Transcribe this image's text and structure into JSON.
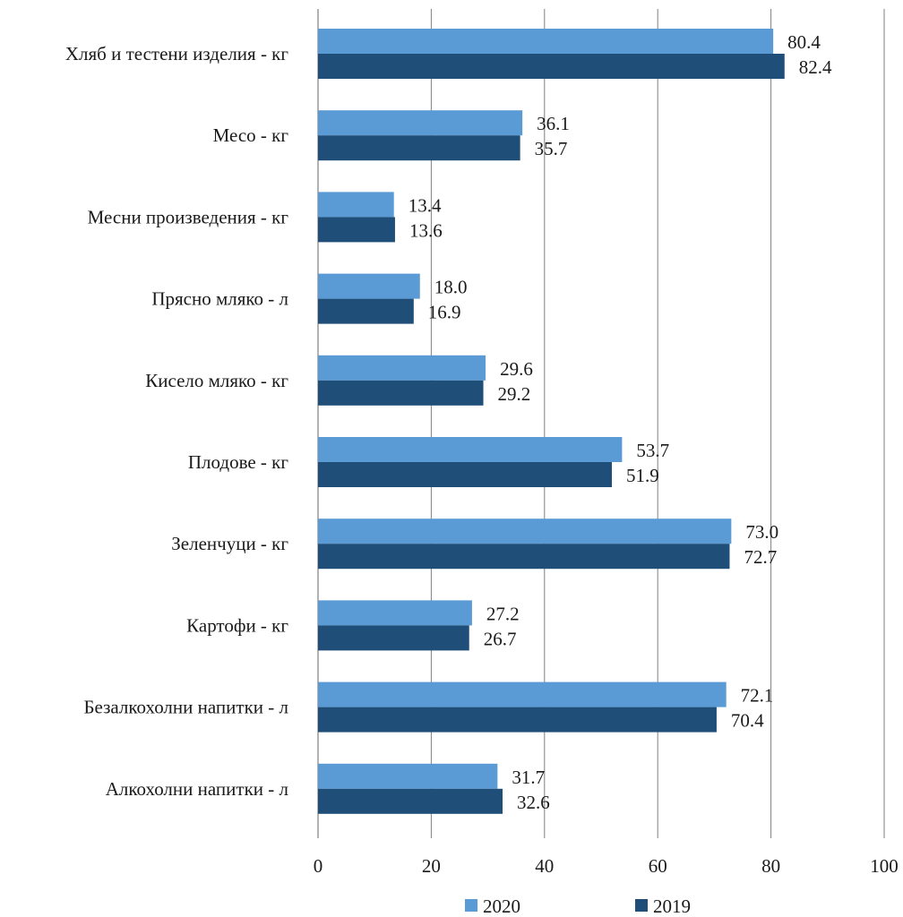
{
  "chart_data": {
    "type": "bar",
    "orientation": "horizontal",
    "title": "",
    "xlabel": "",
    "ylabel": "",
    "categories": [
      "Хляб и тестени изделия - кг",
      "Месо - кг",
      "Месни произведения  - кг",
      "Прясно мляко - л",
      "Кисело мляко - кг",
      "Плодове - кг",
      "Зеленчуци - кг",
      "Картофи - кг",
      "Безалкохолни напитки - л",
      "Алкохолни напитки - л"
    ],
    "series": [
      {
        "name": "2020",
        "color": "#5b9bd5",
        "values": [
          80.4,
          36.1,
          13.4,
          18.0,
          29.6,
          53.7,
          73.0,
          27.2,
          72.1,
          31.7
        ],
        "labels": [
          "80.4",
          "36.1",
          "13.4",
          "18.0",
          "29.6",
          "53.7",
          "73.0",
          "27.2",
          "72.1",
          "31.7"
        ]
      },
      {
        "name": "2019",
        "color": "#1f4e79",
        "values": [
          82.4,
          35.7,
          13.6,
          16.9,
          29.2,
          51.9,
          72.7,
          26.7,
          70.4,
          32.6
        ],
        "labels": [
          "82.4",
          "35.7",
          "13.6",
          "16.9",
          "29.2",
          "51.9",
          "72.7",
          "26.7",
          "70.4",
          "32.6"
        ]
      }
    ],
    "xlim": [
      0,
      100
    ],
    "xticks": [
      "0",
      "20",
      "40",
      "60",
      "80",
      "100"
    ],
    "grid": true,
    "legend": "bottom"
  }
}
